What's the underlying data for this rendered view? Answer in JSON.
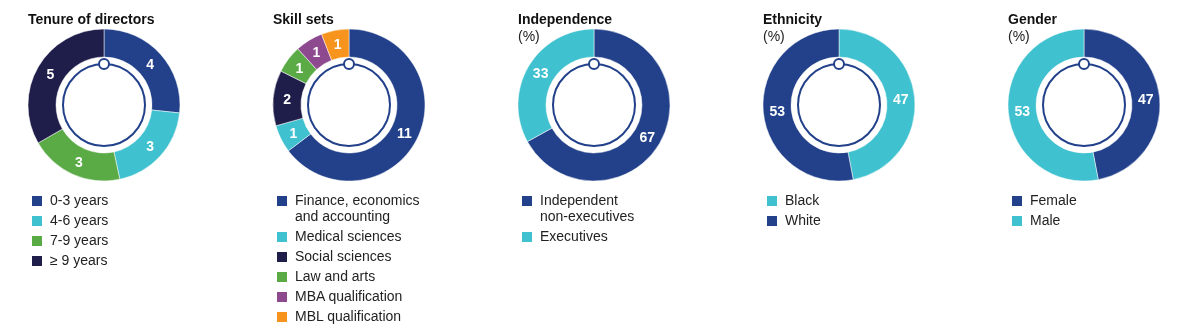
{
  "chart_data": [
    {
      "type": "donut",
      "title": "Tenure of directors",
      "categories": [
        "0-3 years",
        "4-6 years",
        "7-9 years",
        "≥ 9 years"
      ],
      "values": [
        4,
        3,
        3,
        5
      ],
      "colors": [
        "#22418a",
        "#3fc1cf",
        "#5aaa46",
        "#1f1d4a"
      ],
      "data_labels": true,
      "legend": "bottom"
    },
    {
      "type": "donut",
      "title": "Skill sets",
      "categories": [
        "Finance, economics and accounting",
        "Medical sciences",
        "Social sciences",
        "Law and arts",
        "MBA qualification",
        "MBL qualification"
      ],
      "values": [
        11,
        1,
        2,
        1,
        1,
        1
      ],
      "colors": [
        "#22418a",
        "#3fc1cf",
        "#1f1d4a",
        "#5aaa46",
        "#8e4a8e",
        "#f7941d"
      ],
      "data_labels": true,
      "legend": "bottom"
    },
    {
      "type": "donut",
      "title": "Independence",
      "subtitle": "(%)",
      "categories": [
        "Independent non-executives",
        "Executives"
      ],
      "values": [
        67,
        33
      ],
      "colors": [
        "#22418a",
        "#3fc1cf"
      ],
      "data_labels": true,
      "legend": "bottom"
    },
    {
      "type": "donut",
      "title": "Ethnicity",
      "subtitle": "(%)",
      "categories": [
        "Black",
        "White"
      ],
      "values": [
        47,
        53
      ],
      "colors": [
        "#3fc1cf",
        "#22418a"
      ],
      "data_labels": true,
      "legend": "bottom"
    },
    {
      "type": "donut",
      "title": "Gender",
      "subtitle": "(%)",
      "categories": [
        "Female",
        "Male"
      ],
      "values": [
        47,
        53
      ],
      "colors": [
        "#22418a",
        "#3fc1cf"
      ],
      "data_labels": true,
      "legend": "bottom"
    }
  ]
}
